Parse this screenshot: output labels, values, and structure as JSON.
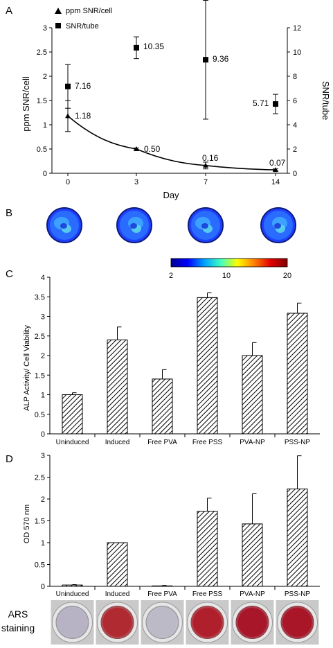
{
  "panels": {
    "A": "A",
    "B": "B",
    "C": "C",
    "D": "D"
  },
  "colors": {
    "axis": "#000000",
    "bar_fill": "hatched-diagonal",
    "colormap": [
      "#00008f",
      "#0000ff",
      "#00a0ff",
      "#40ffc0",
      "#ffff00",
      "#ff8000",
      "#e00000",
      "#800000"
    ]
  },
  "chart_data": [
    {
      "panel": "A",
      "type": "line",
      "xlabel": "Day",
      "ylabel_left": "ppm SNR/cell",
      "ylabel_right": "SNR/tube",
      "x": [
        "0",
        "3",
        "7",
        "14"
      ],
      "ylim_left": [
        0,
        3
      ],
      "ylim_right": [
        0,
        12
      ],
      "yticks_left": [
        "0",
        "0.5",
        "1",
        "1.5",
        "2",
        "2.5",
        "3"
      ],
      "yticks_right": [
        "0",
        "2",
        "4",
        "6",
        "8",
        "10",
        "12"
      ],
      "legend_position": "top-left",
      "series": [
        {
          "name": "ppm SNR/cell",
          "axis": "left",
          "marker": "triangle",
          "values": [
            1.18,
            0.5,
            0.16,
            0.07
          ],
          "labels": [
            "1.18",
            "0.50",
            "0.16",
            "0.07"
          ],
          "error": [
            0.32,
            0.02,
            0.07,
            0.02
          ]
        },
        {
          "name": "SNR/tube",
          "axis": "right",
          "marker": "square",
          "values": [
            7.16,
            10.35,
            9.36,
            5.71
          ],
          "labels": [
            "7.16",
            "10.35",
            "9.36",
            "5.71"
          ],
          "error": [
            1.8,
            0.9,
            4.9,
            0.8
          ]
        }
      ],
      "fit": "exponential-decay"
    },
    {
      "panel": "C",
      "type": "bar",
      "ylabel": "ALP Activity/ Cell Viability",
      "ylim": [
        0,
        4
      ],
      "yticks": [
        "0",
        "0.5",
        "1",
        "1.5",
        "2",
        "2.5",
        "3",
        "3.5",
        "4"
      ],
      "categories": [
        "Uninduced",
        "Induced",
        "Free PVA",
        "Free PSS",
        "PVA-NP",
        "PSS-NP"
      ],
      "values": [
        1.0,
        2.4,
        1.4,
        3.48,
        2.0,
        3.08
      ],
      "error": [
        0.05,
        0.33,
        0.24,
        0.12,
        0.33,
        0.26
      ]
    },
    {
      "panel": "D",
      "type": "bar",
      "ylabel": "OD 570 nm",
      "ylim": [
        0,
        3
      ],
      "yticks": [
        "0",
        "0.5",
        "1",
        "1.5",
        "2",
        "2.5",
        "3"
      ],
      "categories": [
        "Uninduced",
        "Induced",
        "Free PVA",
        "Free PSS",
        "PVA-NP",
        "PSS-NP"
      ],
      "values": [
        0.03,
        1.0,
        0.01,
        1.72,
        1.43,
        2.23
      ],
      "error": [
        0.01,
        0.0,
        0.01,
        0.3,
        0.69,
        0.76
      ]
    }
  ],
  "panel_b": {
    "colorbar_ticks": [
      "2",
      "10",
      "20"
    ],
    "images": [
      "day-0-scan",
      "day-3-scan",
      "day-7-scan",
      "day-14-scan"
    ]
  },
  "ars": {
    "label": "ARS\nstaining",
    "wells": [
      "#b7b2c4",
      "#b02a32",
      "#bcbac6",
      "#b0202c",
      "#a8162a",
      "#a81628"
    ]
  }
}
